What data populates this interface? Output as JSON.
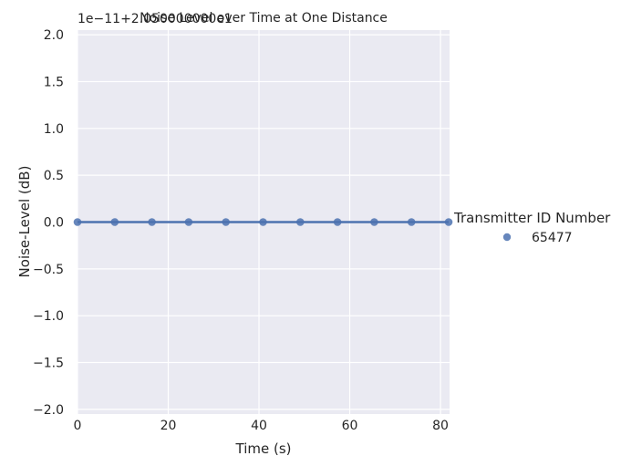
{
  "chart_data": {
    "type": "scatter",
    "title": "Noise Level over Time at One Distance",
    "xlabel": "Time (s)",
    "ylabel": "Noise-Level (dB)",
    "y_offset_text": "1e−11+2.050000000e1",
    "xlim": [
      0,
      82
    ],
    "ylim": [
      -2.05,
      2.05
    ],
    "x_ticks": [
      0,
      20,
      40,
      60,
      80
    ],
    "x_tick_labels": [
      "0",
      "20",
      "40",
      "60",
      "80"
    ],
    "y_ticks": [
      -2.0,
      -1.5,
      -1.0,
      -0.5,
      0.0,
      0.5,
      1.0,
      1.5,
      2.0
    ],
    "y_tick_labels": [
      "−2.0",
      "−1.5",
      "−1.0",
      "−0.5",
      "0.0",
      "0.5",
      "1.0",
      "1.5",
      "2.0"
    ],
    "grid": true,
    "legend": {
      "title": "Transmitter ID Number",
      "placement": "right",
      "entries": [
        "65477"
      ]
    },
    "series": [
      {
        "name": "65477",
        "color": "#4c72b0",
        "x": [
          0,
          8.2,
          16.4,
          24.5,
          32.7,
          40.9,
          49.1,
          57.3,
          65.4,
          73.6,
          81.8
        ],
        "y": [
          0,
          0,
          0,
          0,
          0,
          0,
          0,
          0,
          0,
          0,
          0
        ],
        "regression_line": true
      }
    ]
  }
}
